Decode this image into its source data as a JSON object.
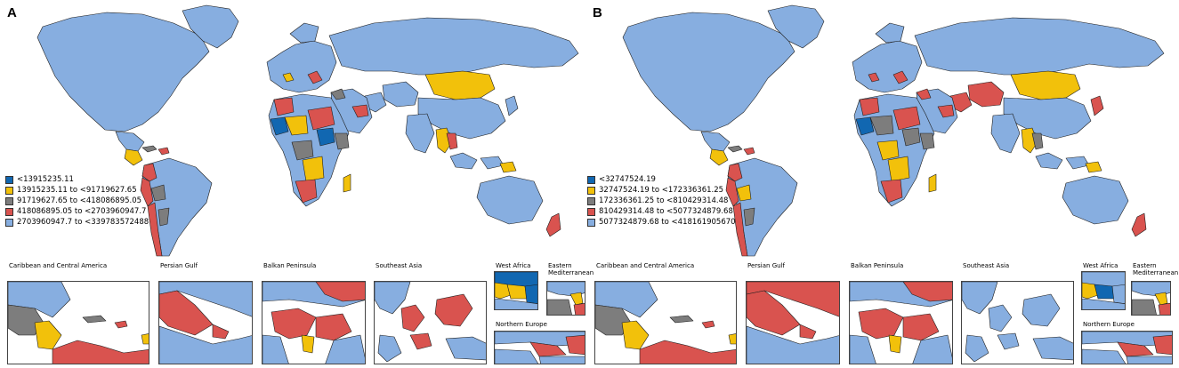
{
  "colors": {
    "c1": "#1167b1",
    "c2": "#f2c10b",
    "c3": "#7d7d7d",
    "c4": "#d9534f",
    "c5": "#87aee0",
    "border": "#1e1e1e"
  },
  "panels": [
    {
      "letter": "A",
      "legend": [
        {
          "label": "<13915235.11",
          "color": "c1"
        },
        {
          "label": "13915235.11 to <91719627.65",
          "color": "c2"
        },
        {
          "label": "91719627.65 to <418086895.05",
          "color": "c3"
        },
        {
          "label": "418086895.05 to <2703960947.7",
          "color": "c4"
        },
        {
          "label": "2703960947.7 to <339783572488",
          "color": "c5"
        }
      ],
      "insets": [
        "Caribbean and Central America",
        "Persian Gulf",
        "Balkan Peninsula",
        "Southeast Asia",
        "West Africa",
        "Eastern Mediterranean",
        "Northern Europe"
      ]
    },
    {
      "letter": "B",
      "legend": [
        {
          "label": "<32747524.19",
          "color": "c1"
        },
        {
          "label": "32747524.19 to <172336361.25",
          "color": "c2"
        },
        {
          "label": "172336361.25 to <810429314.48",
          "color": "c3"
        },
        {
          "label": "810429314.48 to <5077324879.68",
          "color": "c4"
        },
        {
          "label": "5077324879.68 to <418161905670",
          "color": "c5"
        }
      ],
      "insets": [
        "Caribbean and Central America",
        "Persian Gulf",
        "Balkan Peninsula",
        "Southeast Asia",
        "West Africa",
        "Eastern Mediterranean",
        "Northern Europe"
      ]
    }
  ]
}
